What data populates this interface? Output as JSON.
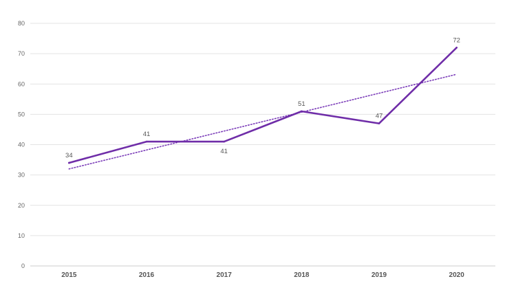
{
  "chart_data": {
    "type": "line",
    "categories": [
      "2015",
      "2016",
      "2017",
      "2018",
      "2019",
      "2020"
    ],
    "series": [
      {
        "values": [
          34,
          41,
          41,
          51,
          47,
          72
        ],
        "color": "#6f2da8"
      }
    ],
    "trendline": {
      "kind": "linear",
      "start": 32,
      "end": 63.2,
      "color": "#7a3bb8",
      "style": "dotted"
    },
    "data_label_positions": [
      "above",
      "above",
      "below",
      "above",
      "above",
      "above"
    ],
    "yticks": [
      "0",
      "10",
      "20",
      "30",
      "40",
      "50",
      "60",
      "70",
      "80"
    ],
    "ylim": [
      0,
      80
    ],
    "grid": true,
    "legend": "none",
    "title": "",
    "xlabel": "",
    "ylabel": ""
  }
}
